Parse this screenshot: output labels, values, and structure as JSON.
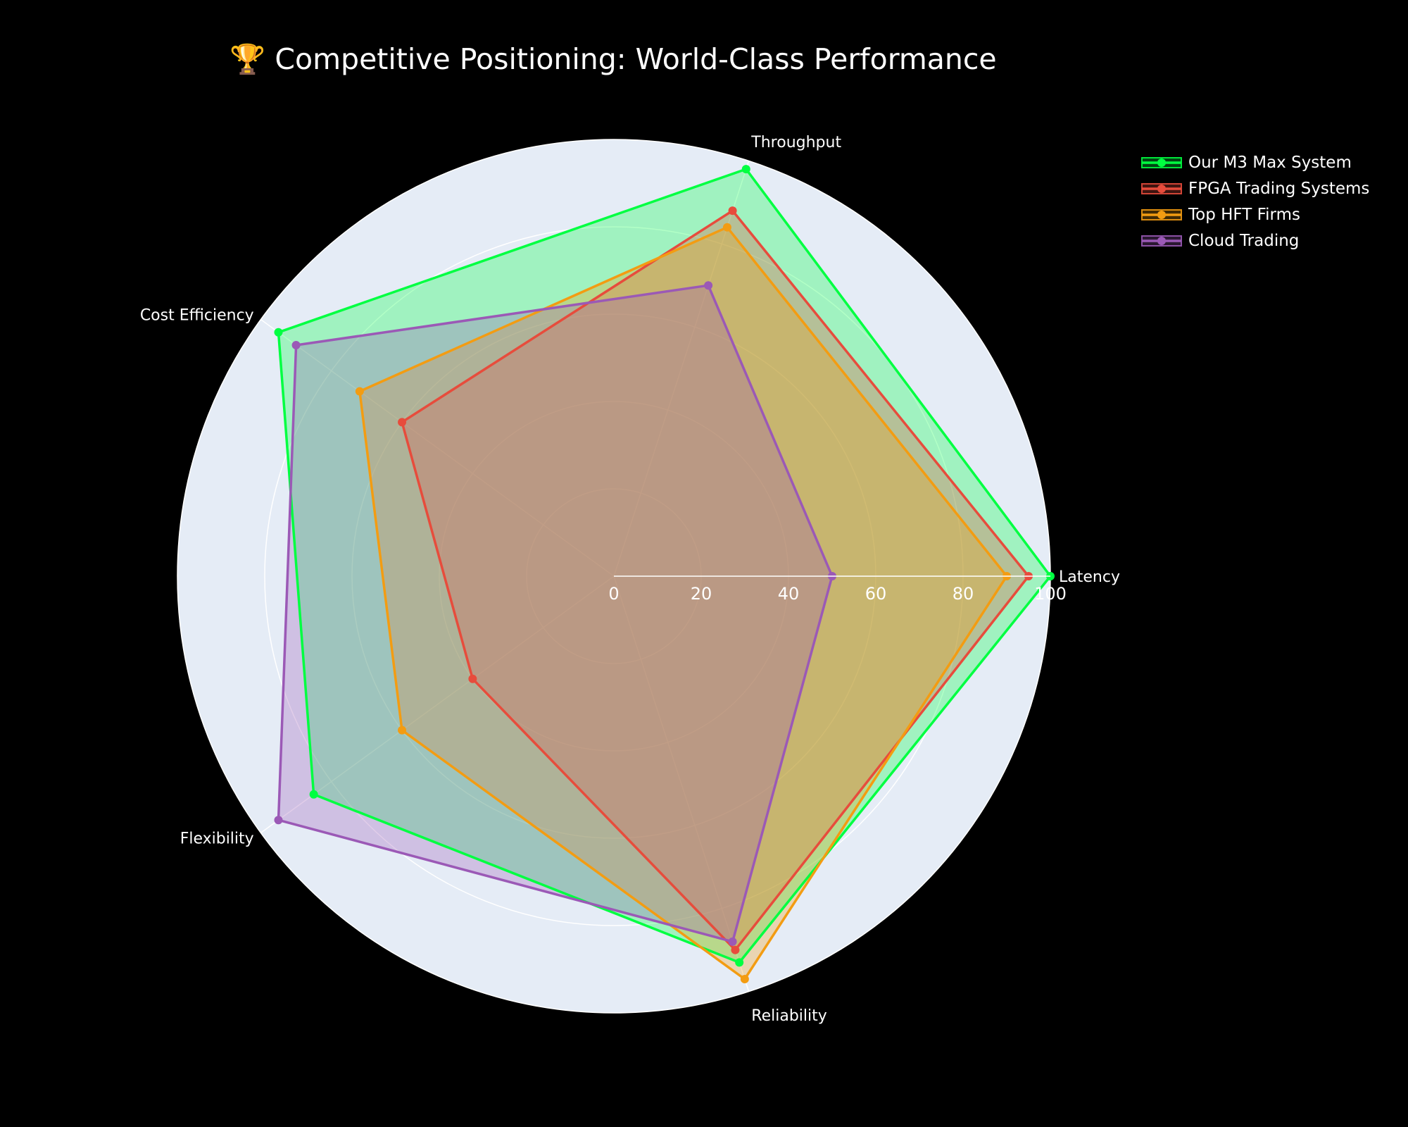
{
  "chart_data": {
    "type": "radar",
    "title": "🏆 Competitive Positioning: World-Class Performance",
    "axes": [
      "Latency",
      "Throughput",
      "Cost Efficiency",
      "Flexibility",
      "Reliability"
    ],
    "radial_range": [
      0,
      100
    ],
    "radial_ticks": [
      "0",
      "20",
      "40",
      "60",
      "80",
      "100"
    ],
    "legend_position": "top-right",
    "series": [
      {
        "name": "Our M3 Max System",
        "values": [
          100,
          98,
          95,
          85,
          93
        ],
        "color": "#00ff41",
        "fill": "rgba(0,255,65,0.3)"
      },
      {
        "name": "FPGA Trading Systems",
        "values": [
          95,
          88,
          60,
          40,
          90
        ],
        "color": "#e74c3c",
        "fill": "rgba(231,76,60,0.3)"
      },
      {
        "name": "Top HFT Firms",
        "values": [
          90,
          84,
          72,
          60,
          97
        ],
        "color": "#f39c12",
        "fill": "rgba(243,156,18,0.3)"
      },
      {
        "name": "Cloud Trading",
        "values": [
          50,
          70,
          90,
          95,
          88
        ],
        "color": "#9b59b6",
        "fill": "rgba(155,89,182,0.3)"
      }
    ]
  }
}
